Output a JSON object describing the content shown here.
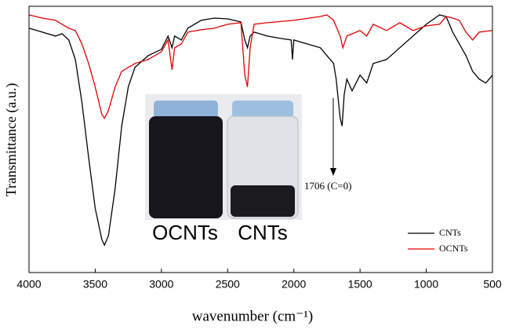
{
  "chart_data": {
    "type": "line",
    "xlabel": "wavenumber (cm⁻¹)",
    "ylabel": "Transmittance (a.u.)",
    "xlim": [
      4000,
      500
    ],
    "xticks": [
      4000,
      3500,
      3000,
      2500,
      2000,
      1500,
      1000,
      500
    ],
    "ylim": [
      0,
      340
    ],
    "legend": "lower right",
    "annotations": [
      "1706 (C=0)",
      "OCNTs",
      "CNTs"
    ],
    "series": [
      {
        "name": "CNTs",
        "color": "#000000",
        "x": [
          4000,
          3900,
          3800,
          3750,
          3700,
          3650,
          3600,
          3550,
          3500,
          3450,
          3430,
          3400,
          3350,
          3300,
          3250,
          3200,
          3100,
          3000,
          2950,
          2920,
          2900,
          2850,
          2800,
          2700,
          2600,
          2500,
          2400,
          2370,
          2350,
          2330,
          2300,
          2200,
          2100,
          2020,
          2010,
          2000,
          1900,
          1800,
          1750,
          1700,
          1680,
          1650,
          1635,
          1620,
          1600,
          1560,
          1500,
          1450,
          1400,
          1300,
          1200,
          1100,
          1000,
          900,
          850,
          800,
          750,
          700,
          650,
          600,
          550,
          500
        ],
        "values": [
          312,
          307,
          302,
          305,
          297,
          272,
          217,
          147,
          82,
          42,
          35,
          47,
          107,
          187,
          237,
          262,
          277,
          285,
          302,
          287,
          302,
          297,
          312,
          322,
          325,
          324,
          320,
          297,
          287,
          302,
          307,
          302,
          299,
          297,
          272,
          297,
          292,
          287,
          277,
          267,
          247,
          197,
          187,
          227,
          247,
          232,
          252,
          242,
          267,
          272,
          287,
          302,
          317,
          329,
          327,
          307,
          292,
          277,
          257,
          247,
          242,
          252
        ]
      },
      {
        "name": "OCNTs",
        "color": "#e00000",
        "x": [
          4000,
          3900,
          3800,
          3750,
          3700,
          3650,
          3600,
          3550,
          3500,
          3450,
          3430,
          3400,
          3350,
          3300,
          3200,
          3100,
          3000,
          2950,
          2920,
          2900,
          2850,
          2800,
          2700,
          2600,
          2500,
          2400,
          2370,
          2350,
          2330,
          2300,
          2200,
          2000,
          1800,
          1750,
          1700,
          1650,
          1630,
          1600,
          1500,
          1450,
          1400,
          1300,
          1200,
          1100,
          1000,
          900,
          850,
          800,
          750,
          700,
          650,
          600,
          500
        ],
        "values": [
          329,
          325,
          322,
          317,
          312,
          309,
          292,
          267,
          237,
          202,
          197,
          207,
          237,
          257,
          267,
          272,
          282,
          297,
          259,
          287,
          292,
          307,
          310,
          312,
          317,
          319,
          252,
          237,
          287,
          317,
          319,
          322,
          327,
          329,
          322,
          302,
          287,
          302,
          309,
          302,
          317,
          309,
          319,
          309,
          315,
          317,
          327,
          325,
          322,
          307,
          297,
          307,
          309
        ]
      }
    ]
  }
}
